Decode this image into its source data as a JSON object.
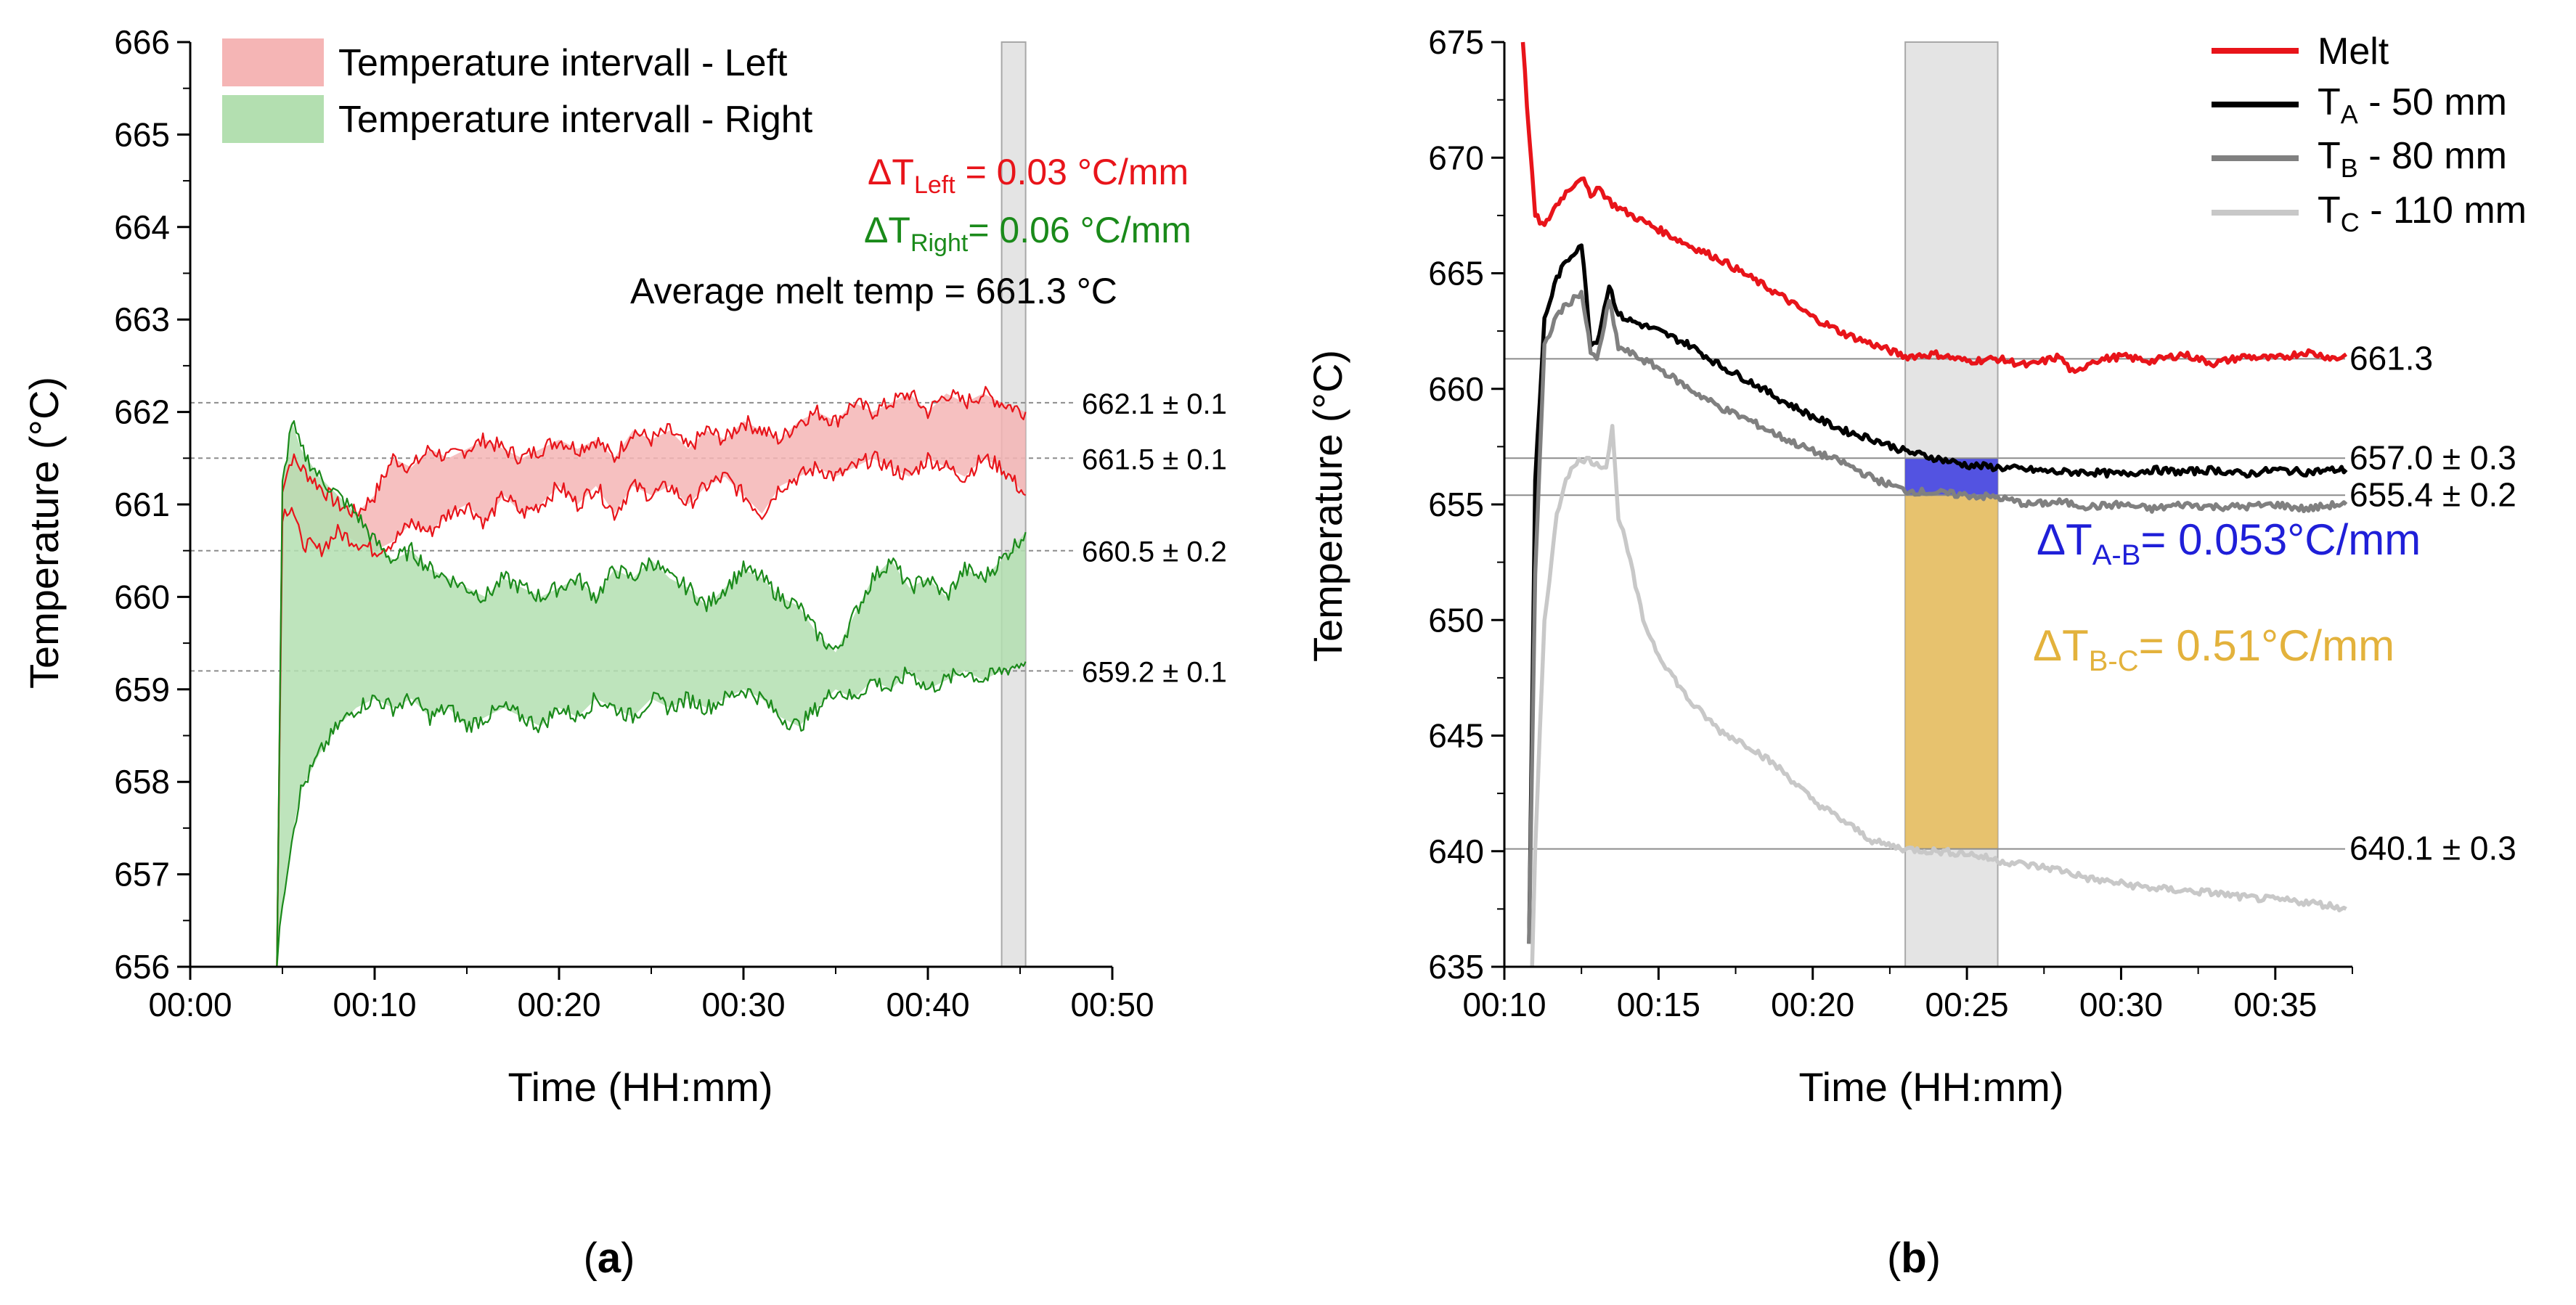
{
  "chart_data": [
    {
      "id": "a",
      "type": "area",
      "caption": "a",
      "xlabel": "Time (HH:mm)",
      "ylabel": "Temperature (°C)",
      "xlim": [
        0,
        50
      ],
      "ylim": [
        656,
        666
      ],
      "xticks": [
        "00:00",
        "00:10",
        "00:20",
        "00:30",
        "00:40",
        "00:50"
      ],
      "yticks": [
        "656",
        "657",
        "658",
        "659",
        "660",
        "661",
        "662",
        "663",
        "664",
        "665",
        "666"
      ],
      "shaded_window": [
        44,
        45.3
      ],
      "legend": {
        "position": "top-left",
        "entries": [
          {
            "label": "Temperature intervall - Left",
            "color": "#f5b5b5"
          },
          {
            "label": "Temperature intervall - Right",
            "color": "#b3dfb0"
          }
        ]
      },
      "annotations": {
        "left_prefix": "ΔT",
        "left_sub": "Left",
        "left_value": " = 0.03 °C/mm",
        "right_prefix": "ΔT",
        "right_sub": "Right",
        "right_value": "= 0.06 °C/mm",
        "average": "Average melt temp = 661.3 °C"
      },
      "reference_lines": [
        {
          "y": 662.1,
          "label": "662.1 ± 0.1"
        },
        {
          "y": 661.5,
          "label": "661.5 ± 0.1"
        },
        {
          "y": 660.5,
          "label": "660.5 ± 0.2"
        },
        {
          "y": 659.2,
          "label": "659.2 ± 0.1"
        }
      ],
      "series": [
        {
          "name": "Left upper",
          "color": "#e8141a",
          "x": [
            4.7,
            5.0,
            5.5,
            6,
            7,
            8,
            9,
            10,
            11,
            12,
            13,
            14,
            15,
            16,
            17,
            18,
            19,
            20,
            21,
            22,
            23,
            24,
            25,
            26,
            27,
            28,
            29,
            30,
            31,
            32,
            33,
            34,
            35,
            36,
            37,
            38,
            39,
            40,
            41,
            42,
            43,
            44,
            45.3
          ],
          "values": [
            656,
            661.2,
            661.5,
            661.4,
            661.2,
            661.0,
            660.9,
            661.1,
            661.5,
            661.4,
            661.6,
            661.5,
            661.6,
            661.7,
            661.6,
            661.5,
            661.6,
            661.7,
            661.6,
            661.7,
            661.5,
            661.8,
            661.7,
            661.8,
            661.6,
            661.8,
            661.7,
            661.9,
            661.8,
            661.7,
            661.9,
            662.0,
            661.9,
            662.1,
            662.0,
            662.1,
            662.2,
            662.0,
            662.2,
            662.1,
            662.2,
            662.1,
            662.0
          ]
        },
        {
          "name": "Left lower",
          "color": "#e8141a",
          "x": [
            4.7,
            5.0,
            5.5,
            6,
            7,
            8,
            9,
            10,
            11,
            12,
            13,
            14,
            15,
            16,
            17,
            18,
            19,
            20,
            21,
            22,
            23,
            24,
            25,
            26,
            27,
            28,
            29,
            30,
            31,
            32,
            33,
            34,
            35,
            36,
            37,
            38,
            39,
            40,
            41,
            42,
            43,
            44,
            45.3
          ],
          "values": [
            656,
            660.9,
            661.0,
            660.6,
            660.5,
            660.7,
            660.6,
            660.5,
            660.6,
            660.8,
            660.7,
            660.9,
            661.0,
            660.8,
            661.1,
            660.9,
            661.0,
            661.2,
            661.0,
            661.2,
            660.9,
            661.2,
            661.1,
            661.2,
            661.0,
            661.2,
            661.3,
            661.1,
            660.9,
            661.2,
            661.3,
            661.4,
            661.3,
            661.4,
            661.5,
            661.4,
            661.3,
            661.5,
            661.4,
            661.3,
            661.5,
            661.4,
            661.1
          ]
        },
        {
          "name": "Right upper",
          "color": "#1a8a1a",
          "x": [
            4.7,
            5.0,
            5.5,
            6,
            7,
            8,
            9,
            10,
            11,
            12,
            13,
            14,
            15,
            16,
            17,
            18,
            19,
            20,
            21,
            22,
            23,
            24,
            25,
            26,
            27,
            28,
            29,
            30,
            31,
            32,
            33,
            34,
            35,
            36,
            37,
            38,
            39,
            40,
            41,
            42,
            43,
            44,
            45.3
          ],
          "values": [
            656,
            661.2,
            661.9,
            661.6,
            661.3,
            661.1,
            660.9,
            660.6,
            660.4,
            660.5,
            660.3,
            660.2,
            660.1,
            660.0,
            660.2,
            660.1,
            660.0,
            660.1,
            660.2,
            660.0,
            660.3,
            660.2,
            660.4,
            660.2,
            660.1,
            659.9,
            660.1,
            660.3,
            660.2,
            660.0,
            659.9,
            659.6,
            659.4,
            659.8,
            660.2,
            660.4,
            660.1,
            660.2,
            660.0,
            660.3,
            660.2,
            660.4,
            660.7
          ]
        },
        {
          "name": "Right lower",
          "color": "#1a8a1a",
          "x": [
            4.7,
            5.0,
            5.5,
            6,
            7,
            8,
            9,
            10,
            11,
            12,
            13,
            14,
            15,
            16,
            17,
            18,
            19,
            20,
            21,
            22,
            23,
            24,
            25,
            26,
            27,
            28,
            29,
            30,
            31,
            32,
            33,
            34,
            35,
            36,
            37,
            38,
            39,
            40,
            41,
            42,
            43,
            44,
            45.3
          ],
          "values": [
            656,
            656.7,
            657.4,
            657.9,
            658.3,
            658.6,
            658.8,
            658.9,
            658.8,
            658.9,
            658.7,
            658.8,
            658.6,
            658.7,
            658.8,
            658.7,
            658.6,
            658.8,
            658.7,
            658.9,
            658.8,
            658.7,
            658.9,
            658.8,
            658.9,
            658.8,
            658.9,
            659.0,
            658.9,
            658.7,
            658.6,
            658.8,
            659.0,
            658.9,
            659.1,
            659.0,
            659.2,
            659.0,
            659.1,
            659.2,
            659.1,
            659.2,
            659.3
          ]
        }
      ]
    },
    {
      "id": "b",
      "type": "line",
      "caption": "b",
      "xlabel": "Time (HH:mm)",
      "ylabel": "Temperature (°C)",
      "xlim": [
        10,
        37.5
      ],
      "ylim": [
        635,
        675
      ],
      "xticks": [
        "00:10",
        "00:15",
        "00:20",
        "00:25",
        "00:30",
        "00:35"
      ],
      "yticks": [
        "635",
        "640",
        "645",
        "650",
        "655",
        "660",
        "665",
        "670",
        "675"
      ],
      "shaded_window": [
        23,
        26
      ],
      "highlight_AB": {
        "x": [
          23,
          26
        ],
        "y": [
          655.4,
          657.0
        ],
        "color": "#3a3ae0"
      },
      "highlight_BC": {
        "x": [
          23,
          26
        ],
        "y": [
          640.1,
          655.4
        ],
        "color": "#e8b84d"
      },
      "legend": {
        "position": "top-right",
        "entries": [
          {
            "label": "Melt",
            "color": "#e8141a"
          },
          {
            "label": "T",
            "sub": "A",
            "suffix": " - 50 mm",
            "color": "#000000"
          },
          {
            "label": "T",
            "sub": "B",
            "suffix": " - 80 mm",
            "color": "#808080"
          },
          {
            "label": "T",
            "sub": "C",
            "suffix": " - 110 mm",
            "color": "#c8c8c8"
          }
        ]
      },
      "annotations": {
        "ab_prefix": "ΔT",
        "ab_sub": "A-B",
        "ab_value": "= 0.053°C/mm",
        "bc_prefix": "ΔT",
        "bc_sub": "B-C",
        "bc_value": "= 0.51°C/mm"
      },
      "reference_lines": [
        {
          "y": 661.3,
          "label": "661.3"
        },
        {
          "y": 657.0,
          "label": "657.0 ± 0.3"
        },
        {
          "y": 655.4,
          "label": "655.4 ± 0.2"
        },
        {
          "y": 640.1,
          "label": "640.1 ± 0.3"
        }
      ],
      "series": [
        {
          "name": "Melt",
          "color": "#e8141a",
          "x": [
            10.6,
            10.8,
            11,
            11.3,
            11.6,
            12,
            12.5,
            12.8,
            13,
            13.5,
            14,
            15,
            16,
            17,
            18,
            19,
            20,
            21,
            22,
            23,
            24,
            25,
            26,
            27,
            28,
            28.5,
            29,
            30,
            31,
            32,
            33,
            34,
            35,
            36,
            37,
            37.3
          ],
          "values": [
            675,
            671,
            667.5,
            667,
            667.8,
            668.5,
            669.2,
            668.3,
            668.8,
            668.0,
            667.6,
            666.9,
            666.2,
            665.6,
            664.8,
            664.0,
            663.1,
            662.4,
            661.9,
            661.4,
            661.5,
            661.2,
            661.3,
            661.0,
            661.4,
            660.6,
            661.2,
            661.4,
            661.2,
            661.5,
            661.1,
            661.4,
            661.3,
            661.6,
            661.3,
            661.5
          ]
        },
        {
          "name": "TA - 50 mm",
          "color": "#000000",
          "x": [
            10.8,
            11,
            11.3,
            11.7,
            12,
            12.5,
            12.8,
            13,
            13.4,
            13.7,
            14,
            15,
            16,
            17,
            18,
            19,
            20,
            21,
            22,
            23,
            24,
            25,
            26,
            27,
            28,
            29,
            30,
            31,
            32,
            33,
            34,
            35,
            36,
            37,
            37.3
          ],
          "values": [
            636,
            656,
            663,
            664.8,
            665.5,
            666.3,
            662.0,
            662.0,
            664.5,
            663.2,
            663.0,
            662.5,
            661.9,
            661.0,
            660.3,
            659.5,
            658.8,
            658.2,
            657.8,
            657.3,
            657.0,
            656.7,
            656.6,
            656.5,
            656.4,
            656.4,
            656.3,
            656.5,
            656.4,
            656.5,
            656.3,
            656.5,
            656.4,
            656.5,
            656.5
          ]
        },
        {
          "name": "TB - 80 mm",
          "color": "#808080",
          "x": [
            10.8,
            11,
            11.3,
            11.7,
            12,
            12.5,
            12.8,
            13,
            13.4,
            13.7,
            14,
            15,
            16,
            17,
            18,
            19,
            20,
            21,
            22,
            23,
            24,
            25,
            26,
            27,
            28,
            29,
            30,
            31,
            32,
            33,
            34,
            35,
            36,
            37,
            37.3
          ],
          "values": [
            636,
            652,
            661.8,
            663.2,
            663.6,
            664.2,
            661.6,
            661.2,
            663.8,
            661.8,
            661.6,
            660.9,
            660.0,
            659.2,
            658.6,
            657.9,
            657.3,
            656.8,
            656.1,
            655.6,
            655.5,
            655.4,
            655.3,
            655.0,
            655.1,
            654.9,
            655.0,
            654.8,
            655.0,
            654.9,
            654.9,
            655.0,
            654.8,
            655.0,
            655.0
          ]
        },
        {
          "name": "TC - 110 mm",
          "color": "#c8c8c8",
          "x": [
            10.9,
            11,
            11.3,
            11.7,
            12,
            12.5,
            13,
            13.3,
            13.5,
            13.7,
            14,
            14.5,
            15,
            16,
            17,
            18,
            19,
            20,
            21,
            22,
            23,
            24,
            25,
            26,
            27,
            28,
            29,
            30,
            31,
            32,
            33,
            34,
            35,
            36,
            37,
            37.3
          ],
          "values": [
            635,
            640,
            650,
            654.5,
            656.2,
            657.0,
            656.8,
            656.6,
            658.3,
            654.5,
            653.0,
            650.0,
            648.5,
            646.5,
            645.2,
            644.5,
            643.5,
            642.2,
            641.3,
            640.4,
            640.1,
            640.0,
            639.9,
            639.6,
            639.4,
            639.2,
            638.8,
            638.6,
            638.4,
            638.3,
            638.2,
            638.0,
            637.9,
            637.8,
            637.6,
            637.5
          ]
        }
      ]
    }
  ]
}
